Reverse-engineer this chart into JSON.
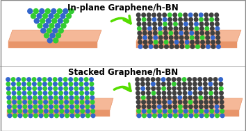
{
  "title_top": "In-plane Graphene/h-BN",
  "title_bottom": "Stacked Graphene/h-BN",
  "bg_top": "#beeaf4",
  "bg_bottom": "#e8f4be",
  "substrate_top": "#f5b898",
  "substrate_side": "#e8956a",
  "atom_blue": "#3366cc",
  "atom_green": "#33cc33",
  "atom_dark": "#404040",
  "atom_darkgray": "#606060",
  "arrow_color": "#55dd00",
  "title_fontsize": 8.5,
  "fig_width": 3.54,
  "fig_height": 1.89,
  "dpi": 100
}
